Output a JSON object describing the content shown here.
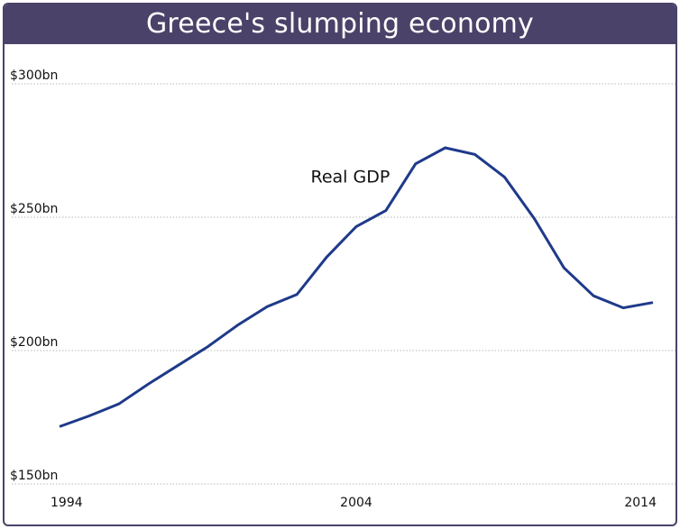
{
  "chart_data": {
    "type": "line",
    "title": "Greece's slumping economy",
    "xlabel": "",
    "ylabel": "",
    "x": [
      1994,
      1995,
      1996,
      1997,
      1998,
      1999,
      2000,
      2001,
      2002,
      2003,
      2004,
      2005,
      2006,
      2007,
      2008,
      2009,
      2010,
      2011,
      2012,
      2013,
      2014
    ],
    "series": [
      {
        "name": "Real GDP",
        "values": [
          171.5,
          175.5,
          180,
          187.5,
          194.5,
          201.5,
          209.5,
          216.5,
          221,
          235,
          246.5,
          252.5,
          270,
          276,
          273.5,
          265,
          249.5,
          231,
          220.5,
          216,
          218
        ],
        "color": "#1f3a8a"
      }
    ],
    "ylim": [
      150,
      300
    ],
    "xlim": [
      1994,
      2014
    ],
    "y_ticks": [
      {
        "value": 300,
        "label": "$300bn"
      },
      {
        "value": 250,
        "label": "$250bn"
      },
      {
        "value": 200,
        "label": "$200bn"
      },
      {
        "value": 150,
        "label": "$150bn"
      }
    ],
    "x_ticks": [
      {
        "value": 1994,
        "label": "1994"
      },
      {
        "value": 2004,
        "label": "2004"
      },
      {
        "value": 2014,
        "label": "2014"
      }
    ],
    "annotations": [
      {
        "text": "Real GDP",
        "x": 2003.8,
        "y": 263
      }
    ],
    "grid": true,
    "title_bar_color": "#4a4268",
    "grid_color": "#b8b8b8"
  }
}
